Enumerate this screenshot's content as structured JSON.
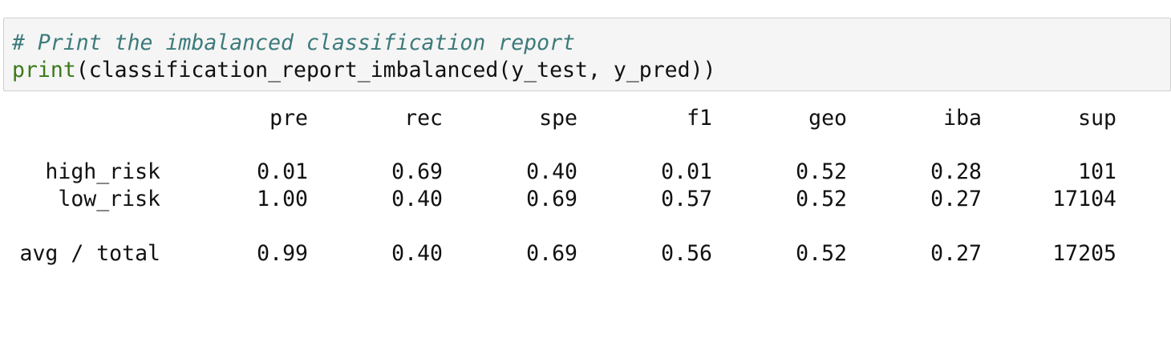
{
  "code": {
    "comment": "# Print the imbalanced classification report",
    "call_func": "print",
    "call_args": "(classification_report_imbalanced(y_test, y_pred))"
  },
  "report": {
    "headers": [
      "pre",
      "rec",
      "spe",
      "f1",
      "geo",
      "iba",
      "sup"
    ],
    "rows": [
      {
        "label": "high_risk",
        "values": [
          "0.01",
          "0.69",
          "0.40",
          "0.01",
          "0.52",
          "0.28",
          "101"
        ]
      },
      {
        "label": "low_risk",
        "values": [
          "1.00",
          "0.40",
          "0.69",
          "0.57",
          "0.52",
          "0.27",
          "17104"
        ]
      }
    ],
    "total": {
      "label": "avg / total",
      "values": [
        "0.99",
        "0.40",
        "0.69",
        "0.56",
        "0.52",
        "0.27",
        "17205"
      ]
    }
  }
}
